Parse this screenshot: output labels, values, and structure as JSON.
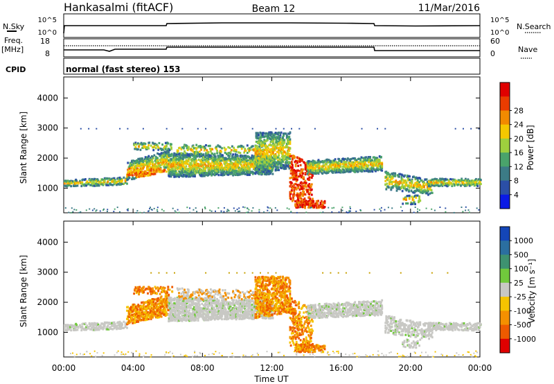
{
  "header": {
    "station": "Hankasalmi (fitACF)",
    "beam": "Beam 12",
    "date": "11/Mar/2016"
  },
  "strips": {
    "nsky_label": "N.Sky",
    "nsearch_label": "N.Search",
    "nsky_ticks": [
      "10^5",
      "10^0"
    ],
    "nsearch_ticks": [
      "10^5",
      "10^0"
    ],
    "freq_label_line1": "Freq.",
    "freq_label_line2": "[MHz]",
    "freq_ticks": [
      "18",
      "8"
    ],
    "nave_label": "Nave",
    "nave_ticks": [
      "60",
      "0"
    ],
    "cpid_label": "CPID",
    "cpid_text": "normal (fast stereo) 153"
  },
  "chart_data": [
    {
      "type": "heatmap",
      "panel": "power",
      "ylabel": "Slant Range [km]",
      "ylim": [
        180,
        4700
      ],
      "yticks": [
        "1000",
        "2000",
        "3000",
        "4000"
      ],
      "colorbar_label": "Power [dB]",
      "colorbar_ticks": [
        "4",
        "8",
        "12",
        "16",
        "20",
        "24",
        "28"
      ],
      "colorbar_colors": [
        "#0a1ae6",
        "#2b4fa6",
        "#3c7b86",
        "#4aa36b",
        "#9ecf3e",
        "#f5c800",
        "#f28a00",
        "#ea3c00",
        "#e00000"
      ]
    },
    {
      "type": "heatmap",
      "panel": "velocity",
      "ylabel": "Slant Range [km]",
      "ylim": [
        180,
        4700
      ],
      "yticks": [
        "1000",
        "2000",
        "3000",
        "4000"
      ],
      "colorbar_label": "Velocity [m s⁻¹]",
      "colorbar_ticks": [
        "1000",
        "500",
        "100",
        "25",
        "-25",
        "-100",
        "-500",
        "-1000"
      ],
      "colorbar_colors": [
        "#1446b8",
        "#2b6fa0",
        "#3e9270",
        "#71c93c",
        "#c8c8c4",
        "#f5c400",
        "#f49000",
        "#ee5a00",
        "#e00000"
      ]
    }
  ],
  "time_axis": {
    "label": "Time UT",
    "ticks": [
      "00:00",
      "04:00",
      "08:00",
      "12:00",
      "16:00",
      "20:00",
      "00:00"
    ]
  }
}
